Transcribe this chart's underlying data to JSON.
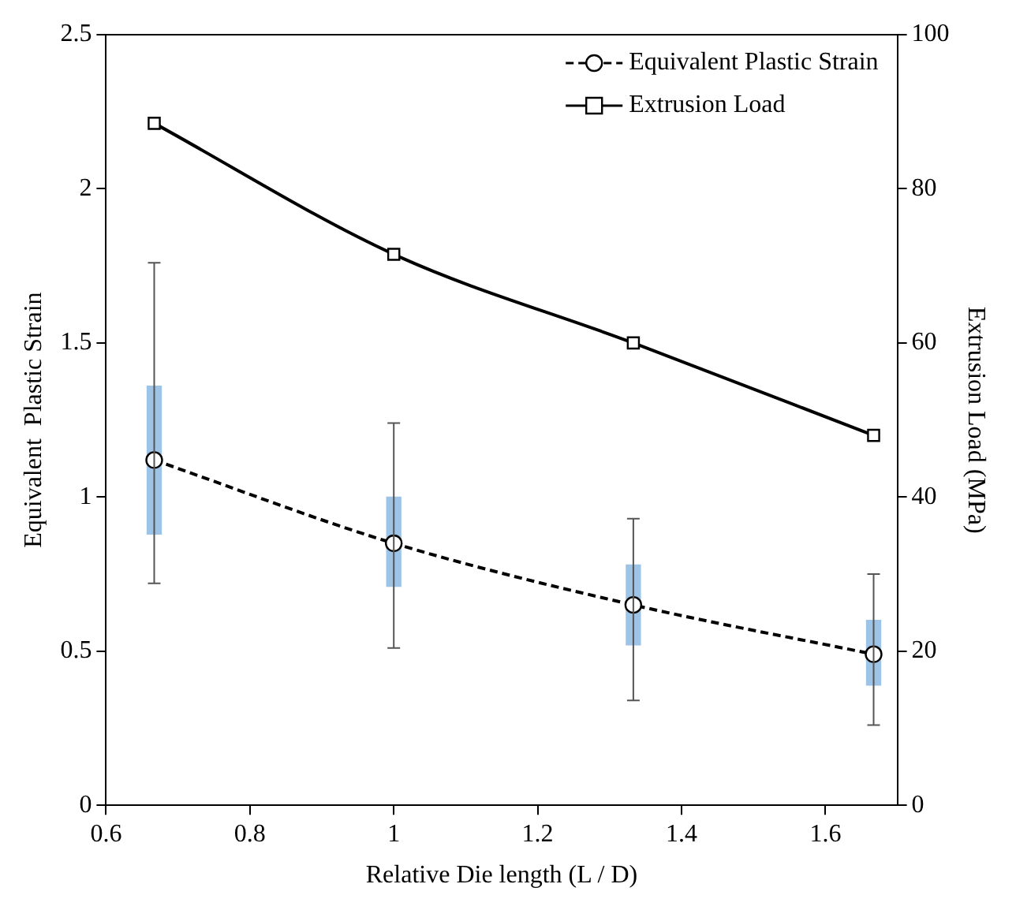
{
  "chart_data": {
    "type": "line",
    "xlabel": "Relative Die length (L / D)",
    "ylabel": "Equivalent  Plastic Strain",
    "y2label": "Extrusion Load (MPa)",
    "xlim": [
      0.6,
      1.7
    ],
    "xticks": [
      0.6,
      0.8,
      1,
      1.2,
      1.4,
      1.6
    ],
    "ylim": [
      0,
      2.5
    ],
    "yticks": [
      0,
      0.5,
      1,
      1.5,
      2,
      2.5
    ],
    "y2lim": [
      0,
      100
    ],
    "y2ticks": [
      0,
      20,
      40,
      60,
      80,
      100
    ],
    "grid": false,
    "legend": "top right",
    "series": [
      {
        "type": "bar",
        "color": "#9dc3e6",
        "x": [
          0.667,
          1,
          1.333,
          1.667
        ],
        "base": [
          0.88,
          0.71,
          0.52,
          0.39
        ],
        "values": [
          0.48,
          0.29,
          0.26,
          0.21
        ]
      },
      {
        "name": "Equivalent Plastic Strain",
        "color": "#000000",
        "marker": "circle",
        "line_style": "dashed",
        "x": [
          0.667,
          1,
          1.333,
          1.667
        ],
        "values": [
          1.12,
          0.85,
          0.65,
          0.49
        ],
        "errors": [
          [
            0.72,
            1.76
          ],
          [
            0.51,
            1.24
          ],
          [
            0.34,
            0.93
          ],
          [
            0.26,
            0.75
          ]
        ]
      },
      {
        "name": "Extrusion Load",
        "color": "#000000",
        "marker": "square",
        "line_style": "solid",
        "axis": "y2",
        "x": [
          0.667,
          1,
          1.333,
          1.667
        ],
        "values": [
          88.5,
          71.5,
          60,
          48
        ]
      }
    ]
  }
}
